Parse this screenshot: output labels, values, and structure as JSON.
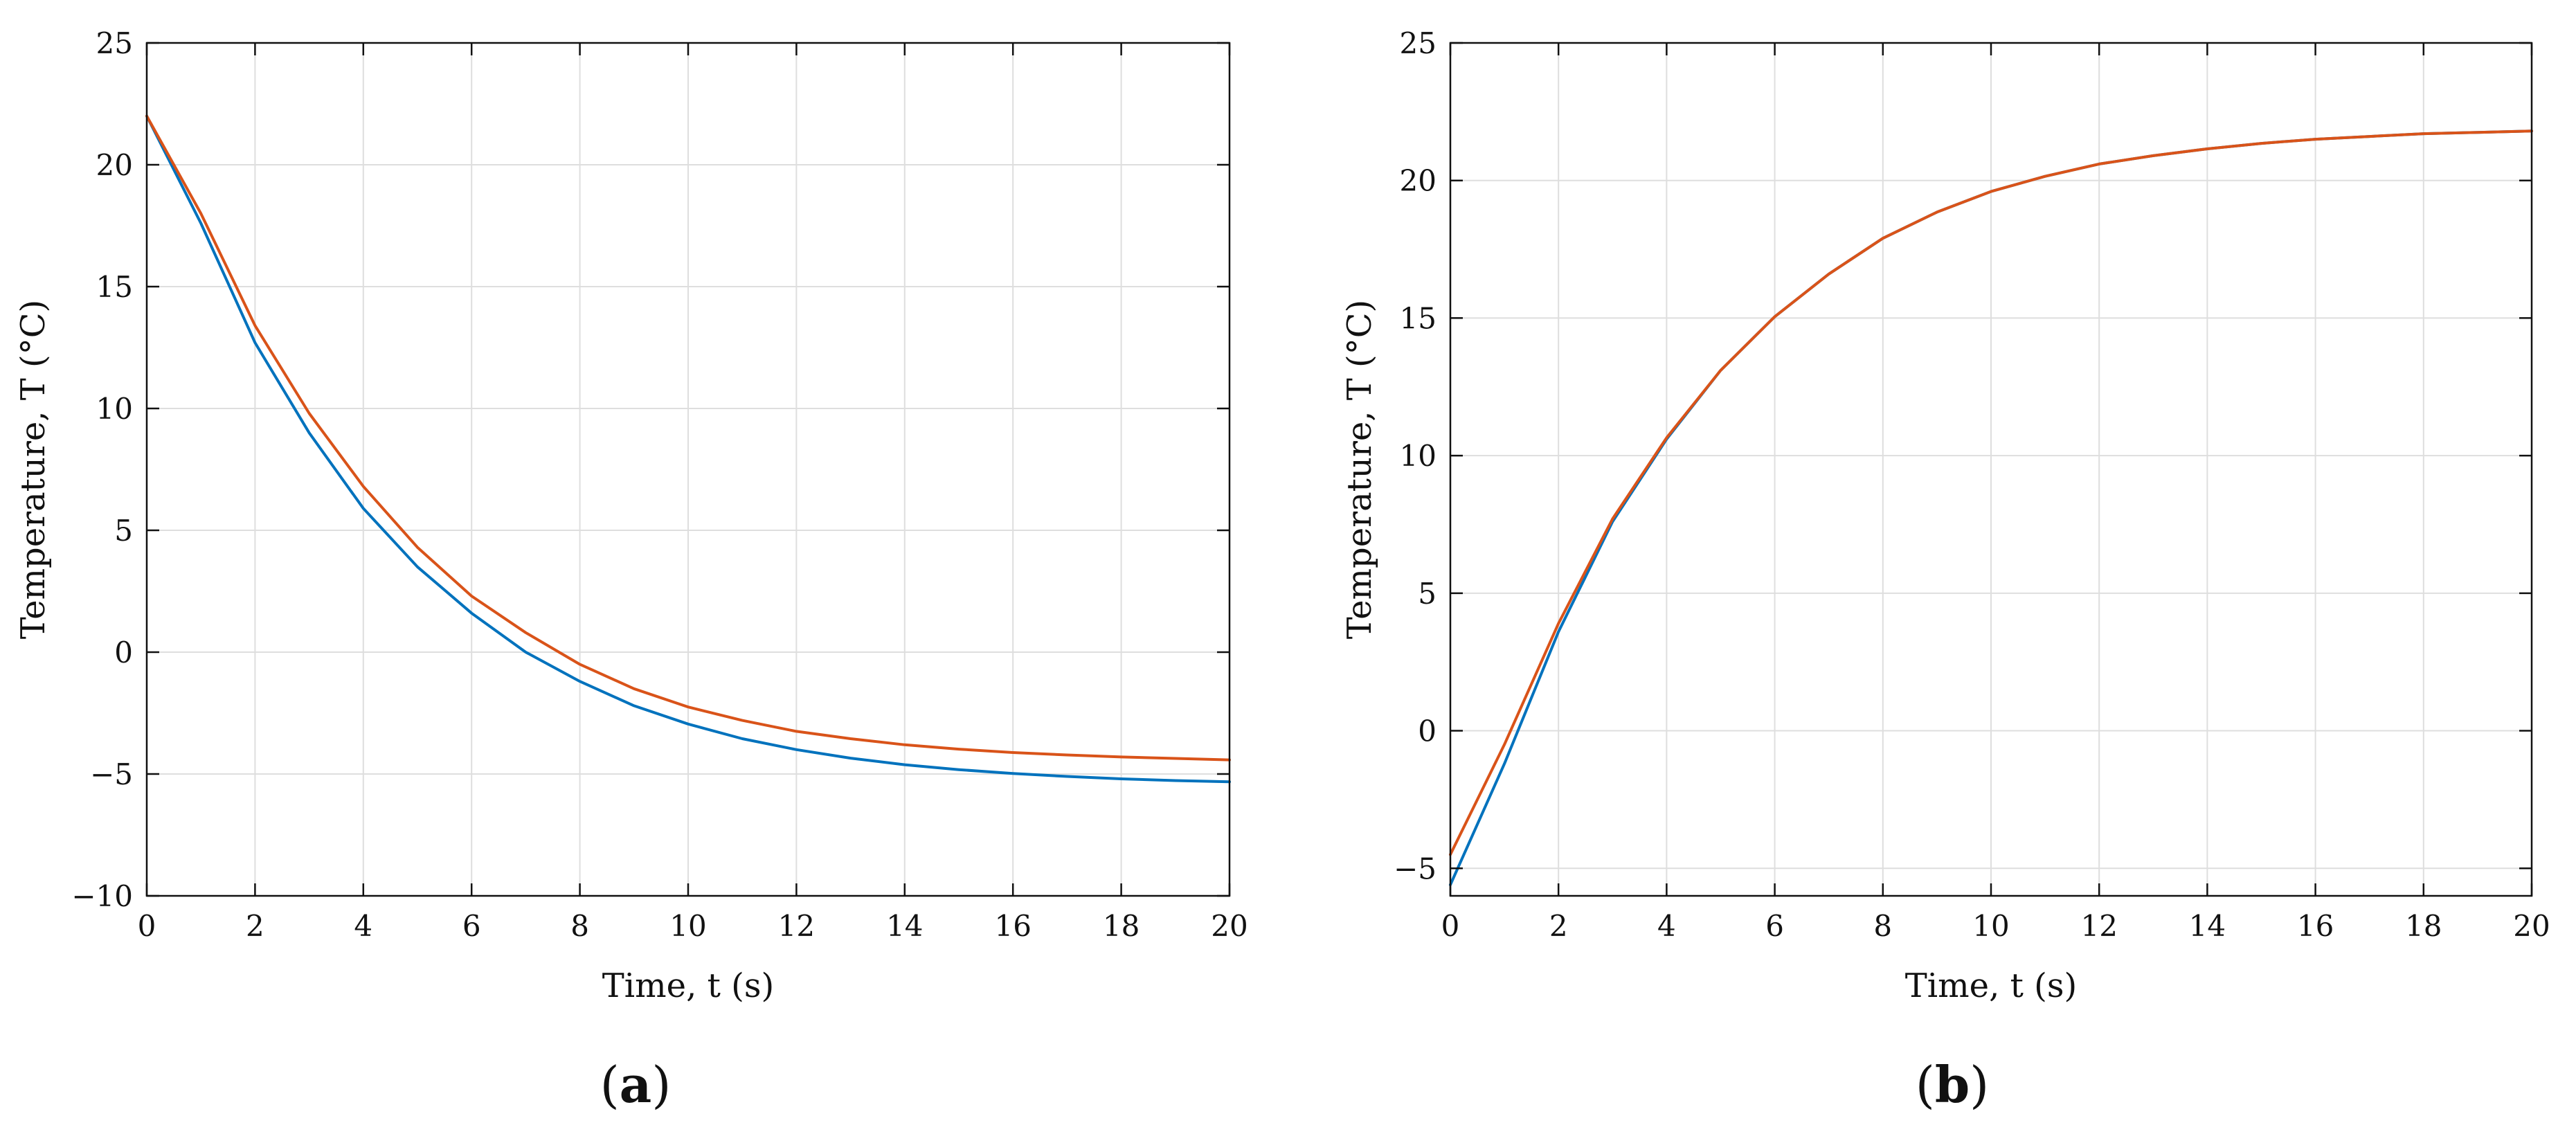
{
  "chart_data": [
    {
      "type": "line",
      "panel_label": "a",
      "xlabel": "Time, t (s)",
      "ylabel": "Temperature, T (°C)",
      "xlim": [
        0,
        20
      ],
      "ylim": [
        -10,
        25
      ],
      "xticks": [
        0,
        2,
        4,
        6,
        8,
        10,
        12,
        14,
        16,
        18,
        20
      ],
      "yticks": [
        -10,
        -5,
        0,
        5,
        10,
        15,
        20,
        25
      ],
      "grid": true,
      "x": [
        0,
        1,
        2,
        3,
        4,
        5,
        6,
        7,
        8,
        9,
        10,
        11,
        12,
        13,
        14,
        15,
        16,
        17,
        18,
        19,
        20
      ],
      "series": [
        {
          "color": "#0072BD",
          "values": [
            22.0,
            17.6,
            12.7,
            9.0,
            5.9,
            3.5,
            1.6,
            0.0,
            -1.2,
            -2.2,
            -2.95,
            -3.55,
            -4.0,
            -4.35,
            -4.62,
            -4.82,
            -4.98,
            -5.1,
            -5.2,
            -5.27,
            -5.32
          ]
        },
        {
          "color": "#D95319",
          "values": [
            22.0,
            18.0,
            13.4,
            9.8,
            6.8,
            4.3,
            2.3,
            0.8,
            -0.5,
            -1.5,
            -2.25,
            -2.8,
            -3.25,
            -3.55,
            -3.8,
            -3.98,
            -4.12,
            -4.22,
            -4.3,
            -4.36,
            -4.42
          ]
        }
      ]
    },
    {
      "type": "line",
      "panel_label": "b",
      "xlabel": "Time, t (s)",
      "ylabel": "Temperature, T (°C)",
      "xlim": [
        0,
        20
      ],
      "ylim": [
        -6,
        25
      ],
      "xticks": [
        0,
        2,
        4,
        6,
        8,
        10,
        12,
        14,
        16,
        18,
        20
      ],
      "yticks": [
        -5,
        0,
        5,
        10,
        15,
        20,
        25
      ],
      "grid": true,
      "x": [
        0,
        1,
        2,
        3,
        4,
        5,
        6,
        7,
        8,
        9,
        10,
        11,
        12,
        13,
        14,
        15,
        16,
        17,
        18,
        19,
        20
      ],
      "series": [
        {
          "color": "#0072BD",
          "values": [
            -5.6,
            -1.2,
            3.6,
            7.6,
            10.6,
            13.1,
            15.05,
            16.6,
            17.9,
            18.85,
            19.6,
            20.15,
            20.6,
            20.9,
            21.15,
            21.35,
            21.5,
            21.6,
            21.7,
            21.75,
            21.8
          ]
        },
        {
          "color": "#D95319",
          "values": [
            -4.5,
            -0.5,
            3.9,
            7.7,
            10.65,
            13.1,
            15.05,
            16.6,
            17.9,
            18.85,
            19.6,
            20.15,
            20.6,
            20.9,
            21.15,
            21.35,
            21.5,
            21.6,
            21.7,
            21.75,
            21.8
          ]
        }
      ]
    }
  ]
}
